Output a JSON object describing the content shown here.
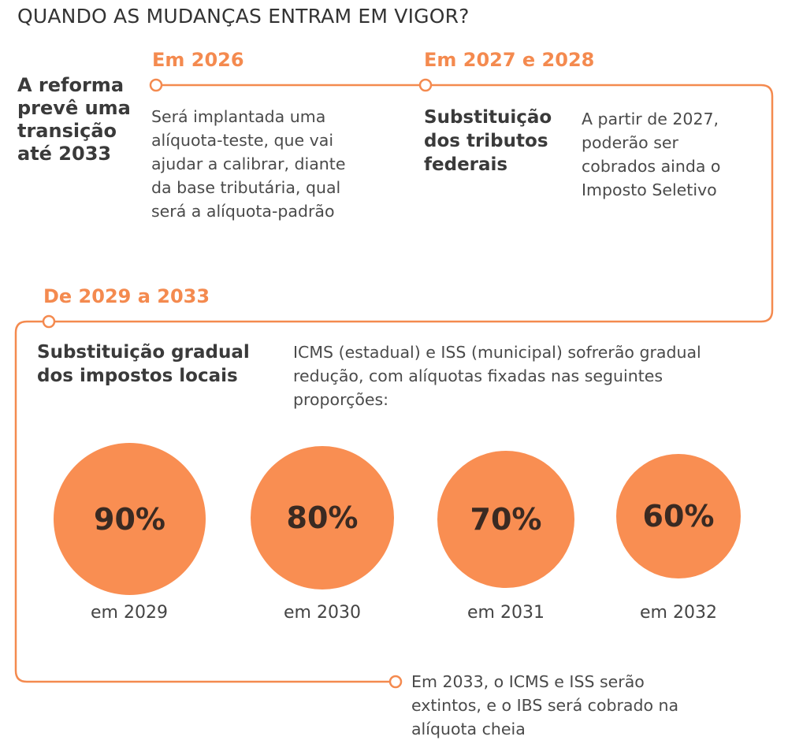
{
  "title": "QUANDO AS MUDANÇAS ENTRAM EM VIGOR?",
  "intro": [
    "A reforma",
    "prevê uma",
    "transição",
    "até 2033"
  ],
  "stage1": {
    "year": "Em 2026",
    "lines": [
      "Será implantada uma",
      "alíquota-teste, que vai",
      "ajudar a calibrar, diante",
      "da base tributária, qual",
      "será a alíquota-padrão"
    ]
  },
  "stage2": {
    "year": "Em 2027 e 2028",
    "heading": [
      "Substituição",
      "dos tributos",
      "federais"
    ],
    "lines": [
      "A partir de 2027,",
      "poderão ser",
      "cobrados ainda o",
      "Imposto Seletivo"
    ]
  },
  "stage3": {
    "year": "De 2029 a 2033",
    "heading": [
      "Substituição gradual",
      "dos impostos locais"
    ],
    "lines": [
      "ICMS (estadual) e ISS (municipal) sofrerão gradual",
      "redução, com alíquotas fixadas nas seguintes",
      "proporções:"
    ]
  },
  "proportions": [
    {
      "value": "90%",
      "label": "em 2029"
    },
    {
      "value": "80%",
      "label": "em 2030"
    },
    {
      "value": "70%",
      "label": "em 2031"
    },
    {
      "value": "60%",
      "label": "em 2032"
    }
  ],
  "final": {
    "lines": [
      "Em 2033, o ICMS e ISS serão",
      "extintos, e o IBS será cobrado na",
      "alíquota cheia"
    ]
  },
  "colors": {
    "accent": "#f48a4f",
    "circle": "#f98e52"
  }
}
